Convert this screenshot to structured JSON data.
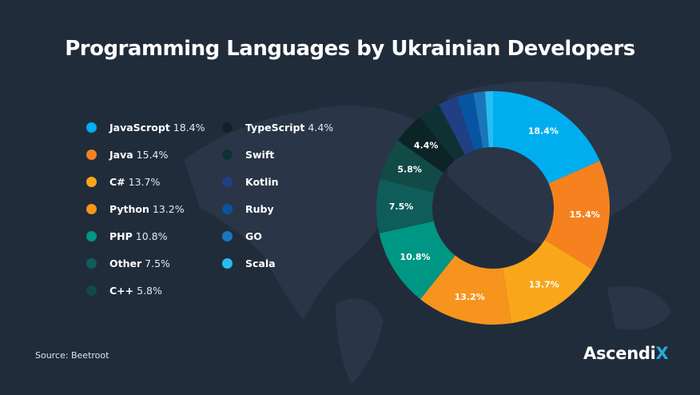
{
  "chart_data": {
    "type": "pie",
    "title": "Programming Languages by Ukrainian Developers",
    "donut": true,
    "legend_position": "left",
    "slices": [
      {
        "label": "JavaScropt",
        "value": 18.4,
        "display": "18.4%",
        "color": "#00aeef"
      },
      {
        "label": "Java",
        "value": 15.4,
        "display": "15.4%",
        "color": "#f5821f"
      },
      {
        "label": "C#",
        "value": 13.7,
        "display": "13.7%",
        "color": "#f9a61a"
      },
      {
        "label": "Python",
        "value": 13.2,
        "display": "13.2%",
        "color": "#f7941d"
      },
      {
        "label": "PHP",
        "value": 10.8,
        "display": "10.8%",
        "color": "#009684"
      },
      {
        "label": "Other",
        "value": 7.5,
        "display": "7.5%",
        "color": "#0e5d5a"
      },
      {
        "label": "C++",
        "value": 5.8,
        "display": "5.8%",
        "color": "#124a47"
      },
      {
        "label": "TypeScript",
        "value": 4.4,
        "display": "4.4%",
        "color": "#0d2427"
      },
      {
        "label": "Swift",
        "value": 3.1,
        "display": "",
        "color": "#0e3234"
      },
      {
        "label": "Kotlin",
        "value": 2.7,
        "display": "",
        "color": "#213f84"
      },
      {
        "label": "Ruby",
        "value": 2.3,
        "display": "",
        "color": "#0755a2"
      },
      {
        "label": "GO",
        "value": 1.6,
        "display": "",
        "color": "#1b75bb"
      },
      {
        "label": "Scala",
        "value": 1.1,
        "display": "",
        "color": "#27bdef"
      }
    ]
  },
  "source": "Source: Beetroot",
  "logo": {
    "main": "Ascendi",
    "accent": "X"
  }
}
